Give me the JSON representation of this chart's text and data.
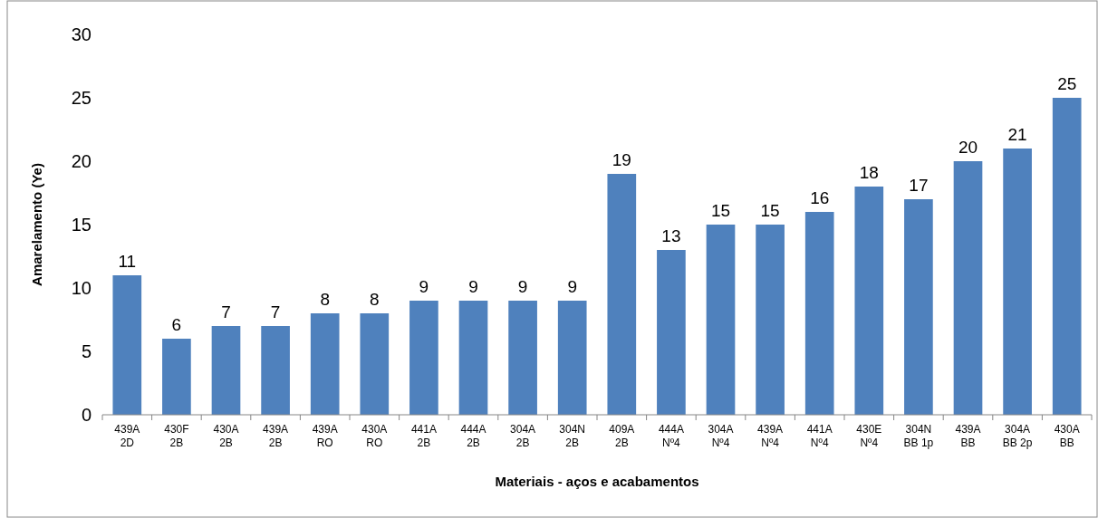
{
  "chart_data": {
    "type": "bar",
    "xlabel": "Materiais - aços e acabamentos",
    "ylabel": "Amarelamento (Ye)",
    "categories": [
      "439A\n2D",
      "430F\n2B",
      "430A\n2B",
      "439A\n2B",
      "439A\nRO",
      "430A\nRO",
      "441A\n2B",
      "444A\n2B",
      "304A\n2B",
      "304N\n2B",
      "409A\n2B",
      "444A\nNº4",
      "304A\nNº4",
      "439A\nNº4",
      "441A\nNº4",
      "430E\nNº4",
      "304N\nBB 1p",
      "439A\nBB",
      "304A\nBB 2p",
      "430A\nBB"
    ],
    "values": [
      11,
      6,
      7,
      7,
      8,
      8,
      9,
      9,
      9,
      9,
      19,
      13,
      15,
      15,
      16,
      18,
      17,
      20,
      21,
      25
    ],
    "color": "#4f81bd",
    "ylim": [
      0,
      30
    ],
    "yticks": [
      0,
      5,
      10,
      15,
      20,
      25,
      30
    ],
    "grid": false,
    "data_labels": true
  }
}
